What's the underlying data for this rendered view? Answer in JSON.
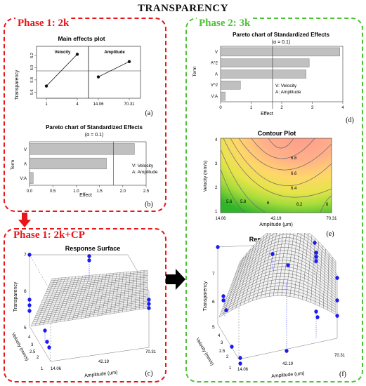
{
  "figure": {
    "title": "TRANSPARENCY"
  },
  "colors": {
    "phase1": "#e8151b",
    "phase2": "#4fc236",
    "arrow_red": "#e8151b",
    "bar": "#c0c0c0",
    "point": "#1a1aff"
  },
  "phase1": {
    "label": "Phase 1: 2k",
    "main_effects": {
      "title": "Main effects plot",
      "ylabel": "Transparency",
      "panels": [
        "Velocity",
        "Amplitude"
      ],
      "yticks": [
        "5.6",
        "5.8",
        "6.0",
        "6.2"
      ],
      "velocity_ticks": [
        "1",
        "4"
      ],
      "amplitude_ticks": [
        "14.06",
        "70.31"
      ],
      "panel_letter": "(a)"
    },
    "pareto": {
      "title": "Pareto chart of Standardized Effects",
      "alpha": "(α = 0.1)",
      "ylabel": "Term",
      "xlabel": "Effect",
      "legend": [
        "V: Velocity",
        "A: Amplitude"
      ],
      "xticks": [
        "0.0",
        "0.5",
        "1.0",
        "1.5",
        "2.0",
        "2.5"
      ],
      "panel_letter": "(b)"
    }
  },
  "phase1cp": {
    "label": "Phase 1: 2k+CP",
    "surface": {
      "title": "Response Surface",
      "zlabel": "Transparency",
      "ylabel": "Velocity (mm/s)",
      "xlabel": "Amplitude (um)",
      "zticks": [
        "5",
        "6",
        "7"
      ],
      "yticks": [
        "1",
        "2",
        "2.5",
        "3",
        "4"
      ],
      "xticks": [
        "14.06",
        "42.19",
        "70.31"
      ],
      "panel_letter": "(c)"
    }
  },
  "phase2": {
    "label": "Phase 2: 3k",
    "pareto": {
      "title": "Pareto chart of Standardized Effects",
      "alpha": "(α = 0.1)",
      "ylabel": "Term",
      "xlabel": "Effect",
      "legend": [
        "V: Velocity",
        "A: Amplitude"
      ],
      "xticks": [
        "0",
        "1",
        "2",
        "3",
        "4"
      ],
      "panel_letter": "(d)"
    },
    "contour": {
      "title": "Contour Plot",
      "ylabel": "Velocity (mm/s)",
      "xlabel": "Amplitude (μm)",
      "yticks": [
        "1",
        "2",
        "3",
        "4"
      ],
      "xticks": [
        "14.06",
        "42.19",
        "70.31"
      ],
      "levels": [
        "6.8",
        "6.6",
        "6.4",
        "6.2",
        "6",
        "5.8",
        "5.6",
        "6"
      ],
      "panel_letter": "(e)"
    },
    "surface": {
      "title": "Response Surface",
      "zlabel": "Transparency",
      "ylabel": "Velocity (mm/s)",
      "xlabel": "Amplitude (um)",
      "zticks": [
        "5",
        "6",
        "7"
      ],
      "yticks": [
        "1",
        "2",
        "2.5",
        "3",
        "4"
      ],
      "xticks": [
        "14.06",
        "42.19",
        "70.31"
      ],
      "panel_letter": "(f)"
    }
  },
  "chart_data": [
    {
      "type": "line",
      "title": "Main effects plot",
      "ylabel": "Transparency",
      "series": [
        {
          "name": "Velocity",
          "x": [
            "1",
            "4"
          ],
          "values": [
            5.7,
            6.22
          ]
        },
        {
          "name": "Amplitude",
          "x": [
            "14.06",
            "70.31"
          ],
          "values": [
            5.85,
            6.1
          ]
        }
      ],
      "ylim": [
        5.5,
        6.35
      ]
    },
    {
      "type": "bar",
      "title": "Pareto chart of Standardized Effects",
      "categories": [
        "V",
        "A",
        "V:A"
      ],
      "values": [
        2.25,
        1.65,
        0.08
      ],
      "reference_line": 1.8,
      "xlabel": "Effect",
      "ylabel": "Term",
      "xlim": [
        0,
        2.5
      ]
    },
    {
      "type": "bar",
      "title": "Pareto chart of Standardized Effects",
      "categories": [
        "V",
        "A^2",
        "A",
        "V^2",
        "V:A"
      ],
      "values": [
        3.9,
        2.9,
        2.8,
        0.65,
        0.15
      ],
      "reference_line": 1.7,
      "xlabel": "Effect",
      "ylabel": "Term",
      "xlim": [
        0,
        4
      ]
    }
  ]
}
